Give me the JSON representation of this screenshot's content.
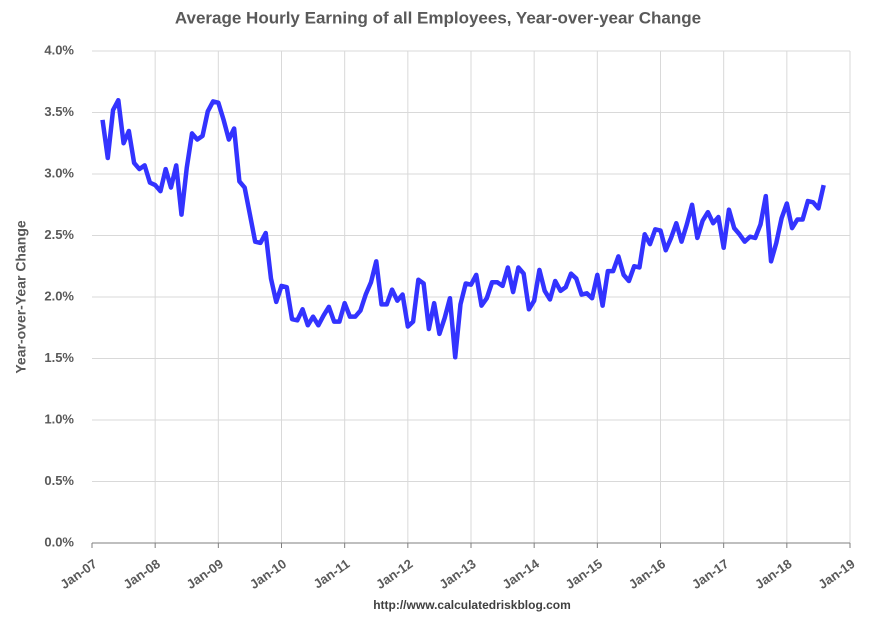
{
  "chart_data": {
    "type": "line",
    "title": "Average Hourly Earning of all Employees, Year-over-year Change",
    "y_label": "Year-over-Year Change",
    "source": "http://www.calculatedriskblog.com",
    "grid": true,
    "xlim": [
      "2007-01",
      "2019-01"
    ],
    "xticks": [
      {
        "value": "2007-01",
        "label": "Jan-07"
      },
      {
        "value": "2008-01",
        "label": "Jan-08"
      },
      {
        "value": "2009-01",
        "label": "Jan-09"
      },
      {
        "value": "2010-01",
        "label": "Jan-10"
      },
      {
        "value": "2011-01",
        "label": "Jan-11"
      },
      {
        "value": "2012-01",
        "label": "Jan-12"
      },
      {
        "value": "2013-01",
        "label": "Jan-13"
      },
      {
        "value": "2014-01",
        "label": "Jan-14"
      },
      {
        "value": "2015-01",
        "label": "Jan-15"
      },
      {
        "value": "2016-01",
        "label": "Jan-16"
      },
      {
        "value": "2017-01",
        "label": "Jan-17"
      },
      {
        "value": "2018-01",
        "label": "Jan-18"
      },
      {
        "value": "2019-01",
        "label": "Jan-19"
      }
    ],
    "ylim": [
      0,
      4
    ],
    "yticks": [
      {
        "value": 0,
        "label": "0.0%"
      },
      {
        "value": 0.5,
        "label": "0.5%"
      },
      {
        "value": 1,
        "label": "1.0%"
      },
      {
        "value": 1.5,
        "label": "1.5%"
      },
      {
        "value": 2,
        "label": "2.0%"
      },
      {
        "value": 2.5,
        "label": "2.5%"
      },
      {
        "value": 3,
        "label": "3.0%"
      },
      {
        "value": 3.5,
        "label": "3.5%"
      },
      {
        "value": 4,
        "label": "4.0%"
      }
    ],
    "x": [
      "2007-03",
      "2007-04",
      "2007-05",
      "2007-06",
      "2007-07",
      "2007-08",
      "2007-09",
      "2007-10",
      "2007-11",
      "2007-12",
      "2008-01",
      "2008-02",
      "2008-03",
      "2008-04",
      "2008-05",
      "2008-06",
      "2008-07",
      "2008-08",
      "2008-09",
      "2008-10",
      "2008-11",
      "2008-12",
      "2009-01",
      "2009-02",
      "2009-03",
      "2009-04",
      "2009-05",
      "2009-06",
      "2009-07",
      "2009-08",
      "2009-09",
      "2009-10",
      "2009-11",
      "2009-12",
      "2010-01",
      "2010-02",
      "2010-03",
      "2010-04",
      "2010-05",
      "2010-06",
      "2010-07",
      "2010-08",
      "2010-09",
      "2010-10",
      "2010-11",
      "2010-12",
      "2011-01",
      "2011-02",
      "2011-03",
      "2011-04",
      "2011-05",
      "2011-06",
      "2011-07",
      "2011-08",
      "2011-09",
      "2011-10",
      "2011-11",
      "2011-12",
      "2012-01",
      "2012-02",
      "2012-03",
      "2012-04",
      "2012-05",
      "2012-06",
      "2012-07",
      "2012-08",
      "2012-09",
      "2012-10",
      "2012-11",
      "2012-12",
      "2013-01",
      "2013-02",
      "2013-03",
      "2013-04",
      "2013-05",
      "2013-06",
      "2013-07",
      "2013-08",
      "2013-09",
      "2013-10",
      "2013-11",
      "2013-12",
      "2014-01",
      "2014-02",
      "2014-03",
      "2014-04",
      "2014-05",
      "2014-06",
      "2014-07",
      "2014-08",
      "2014-09",
      "2014-10",
      "2014-11",
      "2014-12",
      "2015-01",
      "2015-02",
      "2015-03",
      "2015-04",
      "2015-05",
      "2015-06",
      "2015-07",
      "2015-08",
      "2015-09",
      "2015-10",
      "2015-11",
      "2015-12",
      "2016-01",
      "2016-02",
      "2016-03",
      "2016-04",
      "2016-05",
      "2016-06",
      "2016-07",
      "2016-08",
      "2016-09",
      "2016-10",
      "2016-11",
      "2016-12",
      "2017-01",
      "2017-02",
      "2017-03",
      "2017-04",
      "2017-05",
      "2017-06",
      "2017-07",
      "2017-08",
      "2017-09",
      "2017-10",
      "2017-11",
      "2017-12",
      "2018-01",
      "2018-02",
      "2018-03",
      "2018-04",
      "2018-05",
      "2018-06",
      "2018-07",
      "2018-08"
    ],
    "series": [
      {
        "color": "#3333ff",
        "values": [
          3.44,
          3.13,
          3.52,
          3.6,
          3.25,
          3.35,
          3.09,
          3.04,
          3.07,
          2.93,
          2.91,
          2.86,
          3.04,
          2.89,
          3.07,
          2.67,
          3.05,
          3.33,
          3.28,
          3.31,
          3.51,
          3.59,
          3.58,
          3.44,
          3.28,
          3.37,
          2.94,
          2.89,
          2.67,
          2.45,
          2.44,
          2.52,
          2.15,
          1.96,
          2.09,
          2.08,
          1.82,
          1.81,
          1.9,
          1.77,
          1.84,
          1.77,
          1.85,
          1.92,
          1.8,
          1.8,
          1.95,
          1.84,
          1.84,
          1.89,
          2.02,
          2.12,
          2.29,
          1.94,
          1.94,
          2.06,
          1.97,
          2.02,
          1.76,
          1.8,
          2.14,
          2.11,
          1.74,
          1.95,
          1.7,
          1.83,
          1.99,
          1.51,
          1.94,
          2.11,
          2.1,
          2.18,
          1.93,
          1.99,
          2.12,
          2.12,
          2.09,
          2.24,
          2.04,
          2.24,
          2.19,
          1.9,
          1.97,
          2.22,
          2.05,
          1.98,
          2.13,
          2.05,
          2.08,
          2.19,
          2.15,
          2.02,
          2.03,
          1.99,
          2.18,
          1.93,
          2.21,
          2.21,
          2.33,
          2.18,
          2.13,
          2.25,
          2.24,
          2.51,
          2.43,
          2.55,
          2.54,
          2.38,
          2.48,
          2.6,
          2.45,
          2.59,
          2.75,
          2.48,
          2.62,
          2.69,
          2.6,
          2.65,
          2.4,
          2.71,
          2.56,
          2.51,
          2.45,
          2.49,
          2.48,
          2.59,
          2.82,
          2.29,
          2.44,
          2.64,
          2.76,
          2.56,
          2.63,
          2.63,
          2.78,
          2.77,
          2.72,
          2.91
        ]
      }
    ]
  }
}
